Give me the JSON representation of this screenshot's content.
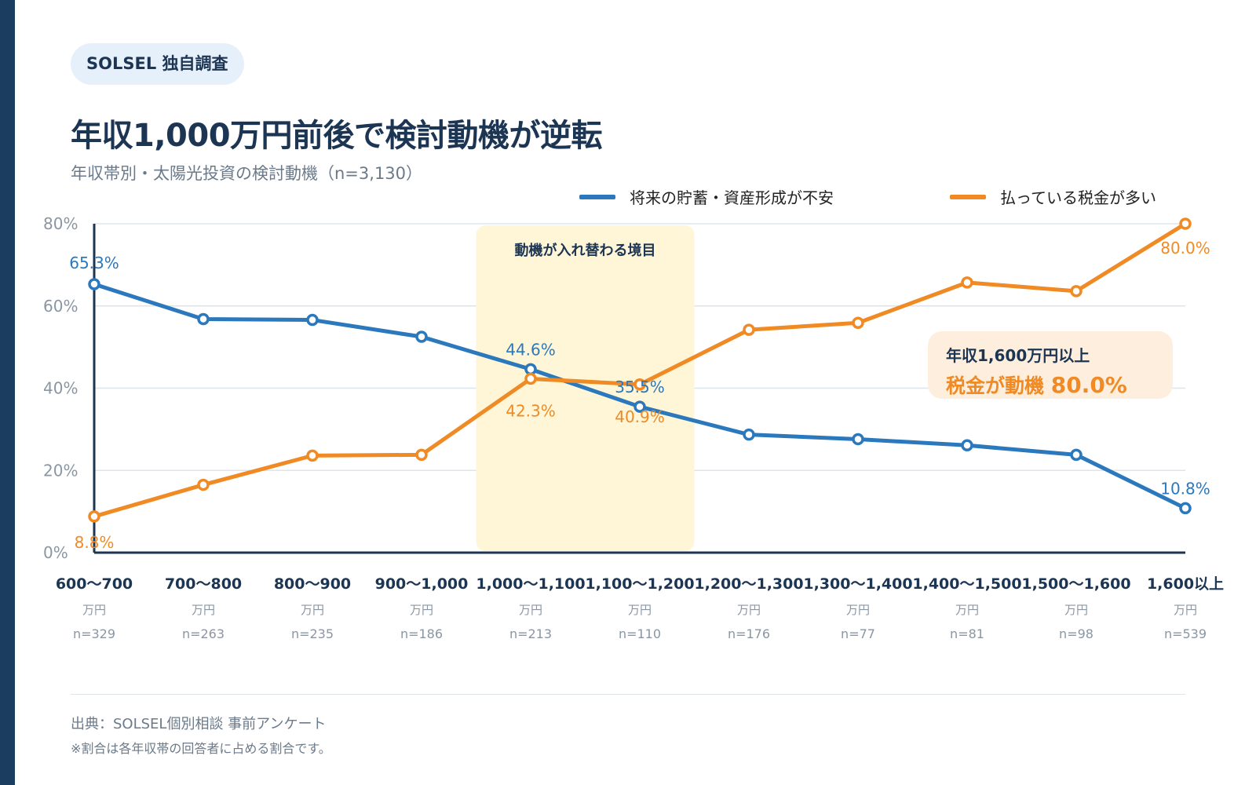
{
  "badge": "SOLSEL 独自調査",
  "title": "年収1,000万円前後で検討動機が逆転",
  "subtitle": "年収帯別・太陽光投資の検討動機（n=3,130）",
  "footer": {
    "source": "出典：SOLSEL個別相談 事前アンケート",
    "note": "※割合は各年収帯の回答者に占める割合です。"
  },
  "chart_data": {
    "type": "line",
    "categories": [
      "600〜700",
      "700〜800",
      "800〜900",
      "900〜1,000",
      "1,000〜1,100",
      "1,100〜1,200",
      "1,200〜1,300",
      "1,300〜1,400",
      "1,400〜1,500",
      "1,500〜1,600",
      "1,600以上"
    ],
    "unit_label": "万円",
    "sample_sizes": [
      "n=329",
      "n=263",
      "n=235",
      "n=186",
      "n=213",
      "n=110",
      "n=176",
      "n=77",
      "n=81",
      "n=98",
      "n=539"
    ],
    "ylim": [
      0,
      80
    ],
    "yticks": [
      0,
      20,
      40,
      60,
      80
    ],
    "ytick_labels": [
      "0%",
      "20%",
      "40%",
      "60%",
      "80%"
    ],
    "grid": true,
    "legend_position": "top-right",
    "series": [
      {
        "name": "将来の貯蓄・資産形成が不安",
        "color": "#2b78bd",
        "values": [
          65.3,
          56.8,
          56.6,
          52.5,
          44.6,
          35.5,
          28.7,
          27.6,
          26.1,
          23.8,
          10.8
        ],
        "data_labels": {
          "0": "65.3%",
          "4": "44.6%",
          "5": "35.5%",
          "10": "10.8%"
        }
      },
      {
        "name": "払っている税金が多い",
        "color": "#f08a24",
        "values": [
          8.8,
          16.5,
          23.6,
          23.8,
          42.3,
          40.9,
          54.2,
          55.9,
          65.7,
          63.6,
          80.0
        ],
        "data_labels": {
          "0": "8.8%",
          "4": "42.3%",
          "5": "40.9%",
          "10": "80.0%"
        }
      }
    ],
    "highlight": {
      "from_category": 4,
      "to_category": 5,
      "label": "動機が入れ替わる境目",
      "color": "#fff6d8"
    },
    "callout": {
      "line1": "年収1,600万円以上",
      "line2_prefix": "税金が動機",
      "line2_value": "80.0%",
      "background": "#fdeedd",
      "accent": "#f08a24"
    }
  }
}
